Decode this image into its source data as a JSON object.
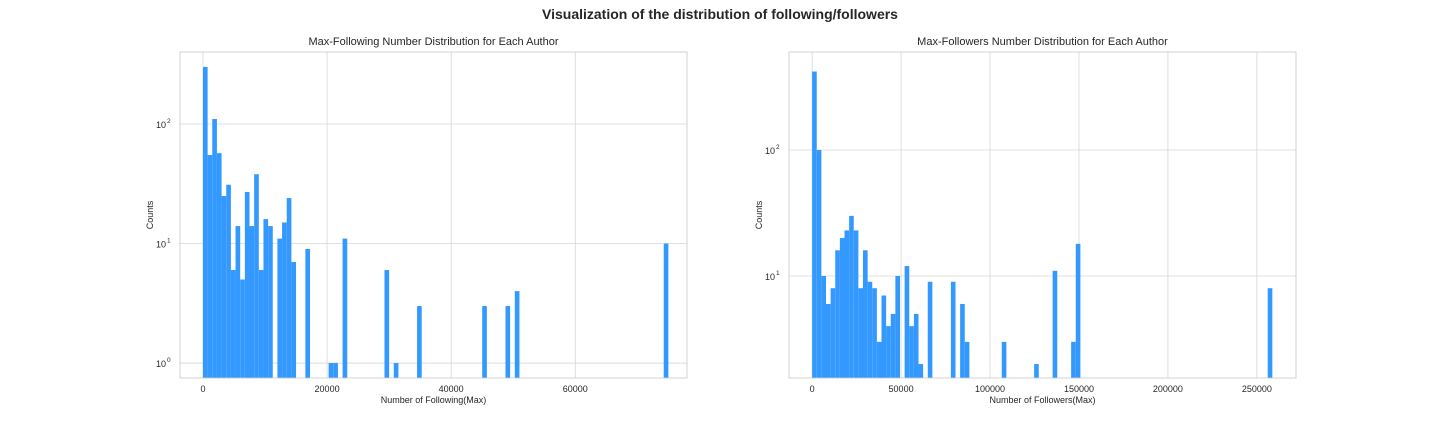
{
  "figure_title": "Visualization of the distribution of following/followers",
  "chart_data": [
    {
      "type": "bar",
      "title": "Max-Following Number Distribution for Each Author",
      "xlabel": "Number of Following(Max)",
      "ylabel": "Counts",
      "yscale": "log",
      "xlim": [
        -3700,
        78000
      ],
      "ylim": [
        0.75,
        400
      ],
      "xticks": [
        0,
        20000,
        40000,
        60000
      ],
      "xtick_labels": [
        "0",
        "20000",
        "40000",
        "60000"
      ],
      "yticks": [
        1,
        10,
        100
      ],
      "ytick_labels": [
        {
          "base": "10",
          "exp": "0"
        },
        {
          "base": "10",
          "exp": "1"
        },
        {
          "base": "10",
          "exp": "2"
        }
      ],
      "bin_width": 750,
      "bars": [
        {
          "x": 0,
          "y": 300
        },
        {
          "x": 750,
          "y": 55
        },
        {
          "x": 1500,
          "y": 110
        },
        {
          "x": 2250,
          "y": 57
        },
        {
          "x": 3000,
          "y": 25
        },
        {
          "x": 3750,
          "y": 31
        },
        {
          "x": 4500,
          "y": 6
        },
        {
          "x": 5250,
          "y": 14
        },
        {
          "x": 6000,
          "y": 5
        },
        {
          "x": 6750,
          "y": 27
        },
        {
          "x": 7500,
          "y": 14
        },
        {
          "x": 8250,
          "y": 38
        },
        {
          "x": 9000,
          "y": 6
        },
        {
          "x": 9750,
          "y": 16
        },
        {
          "x": 10500,
          "y": 14
        },
        {
          "x": 12000,
          "y": 11
        },
        {
          "x": 12750,
          "y": 15
        },
        {
          "x": 13500,
          "y": 24
        },
        {
          "x": 14250,
          "y": 7
        },
        {
          "x": 16500,
          "y": 9
        },
        {
          "x": 20250,
          "y": 1
        },
        {
          "x": 21000,
          "y": 1
        },
        {
          "x": 22500,
          "y": 11
        },
        {
          "x": 29250,
          "y": 6
        },
        {
          "x": 30750,
          "y": 1
        },
        {
          "x": 34500,
          "y": 3
        },
        {
          "x": 45000,
          "y": 3
        },
        {
          "x": 48750,
          "y": 3
        },
        {
          "x": 50250,
          "y": 4
        },
        {
          "x": 74250,
          "y": 10
        }
      ],
      "color": "#3399ff",
      "grid": true
    },
    {
      "type": "bar",
      "title": "Max-Followers Number Distribution for Each Author",
      "xlabel": "Number of Followers(Max)",
      "ylabel": "Counts",
      "yscale": "log",
      "xlim": [
        -13000,
        272000
      ],
      "ylim": [
        1.55,
        600
      ],
      "xticks": [
        0,
        50000,
        100000,
        150000,
        200000,
        250000
      ],
      "xtick_labels": [
        "0",
        "50000",
        "100000",
        "150000",
        "200000",
        "250000"
      ],
      "yticks": [
        10,
        100
      ],
      "ytick_labels": [
        {
          "base": "10",
          "exp": "1"
        },
        {
          "base": "10",
          "exp": "2"
        }
      ],
      "bin_width": 2600,
      "bars": [
        {
          "x": 0,
          "y": 420
        },
        {
          "x": 2600,
          "y": 100
        },
        {
          "x": 5200,
          "y": 10
        },
        {
          "x": 7800,
          "y": 6
        },
        {
          "x": 10400,
          "y": 8
        },
        {
          "x": 13000,
          "y": 16
        },
        {
          "x": 15600,
          "y": 20
        },
        {
          "x": 18200,
          "y": 23
        },
        {
          "x": 20800,
          "y": 30
        },
        {
          "x": 23400,
          "y": 23
        },
        {
          "x": 26000,
          "y": 8
        },
        {
          "x": 28600,
          "y": 16
        },
        {
          "x": 31200,
          "y": 9
        },
        {
          "x": 33800,
          "y": 8
        },
        {
          "x": 36400,
          "y": 3
        },
        {
          "x": 39000,
          "y": 7
        },
        {
          "x": 41600,
          "y": 4
        },
        {
          "x": 44200,
          "y": 5
        },
        {
          "x": 46800,
          "y": 10
        },
        {
          "x": 52000,
          "y": 12
        },
        {
          "x": 54600,
          "y": 4
        },
        {
          "x": 57200,
          "y": 5
        },
        {
          "x": 59800,
          "y": 2
        },
        {
          "x": 65000,
          "y": 9
        },
        {
          "x": 78000,
          "y": 9
        },
        {
          "x": 83200,
          "y": 6
        },
        {
          "x": 85800,
          "y": 3
        },
        {
          "x": 106600,
          "y": 3
        },
        {
          "x": 124800,
          "y": 2
        },
        {
          "x": 135200,
          "y": 11
        },
        {
          "x": 145600,
          "y": 3
        },
        {
          "x": 148200,
          "y": 18
        },
        {
          "x": 256100,
          "y": 8
        }
      ],
      "color": "#3399ff",
      "grid": true
    }
  ]
}
